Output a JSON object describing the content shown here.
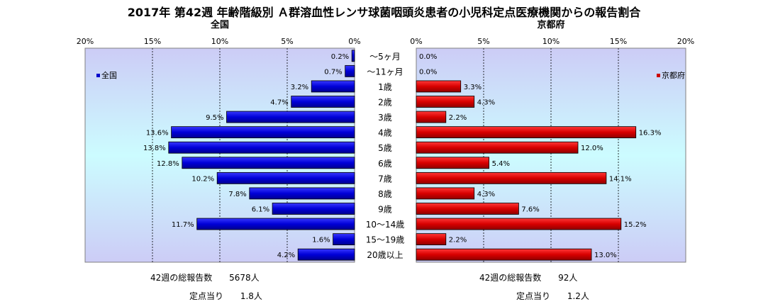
{
  "title": "2017年 第42週 年齢階級別 Ａ群溶血性レンサ球菌咽頭炎患者の小児科定点医療機関からの報告割合",
  "chart_data": {
    "type": "bar",
    "orientation": "horizontal",
    "categories": [
      "～5ヶ月",
      "～11ヶ月",
      "1歳",
      "2歳",
      "3歳",
      "4歳",
      "5歳",
      "6歳",
      "7歳",
      "8歳",
      "9歳",
      "10～14歳",
      "15～19歳",
      "20歳以上"
    ],
    "charts": [
      {
        "subtitle": "全国",
        "legend": "全国",
        "legend_position": "top-left",
        "color": "#0000cc",
        "xlim": [
          0,
          20
        ],
        "ticks": [
          "20%",
          "15%",
          "10%",
          "5%",
          "0%"
        ],
        "values": [
          0.2,
          0.7,
          3.2,
          4.7,
          9.5,
          13.6,
          13.8,
          12.8,
          10.2,
          7.8,
          6.1,
          11.7,
          1.6,
          4.2
        ],
        "labels": [
          "0.2%",
          "0.7%",
          "3.2%",
          "4.7%",
          "9.5%",
          "13.6%",
          "13.8%",
          "12.8%",
          "10.2%",
          "7.8%",
          "6.1%",
          "11.7%",
          "1.6%",
          "4.2%"
        ],
        "direction": "reversed"
      },
      {
        "subtitle": "京都府",
        "legend": "京都府",
        "legend_position": "top-right",
        "color": "#cc0000",
        "xlim": [
          0,
          20
        ],
        "ticks": [
          "0%",
          "5%",
          "10%",
          "15%",
          "20%"
        ],
        "values": [
          0.0,
          0.0,
          3.3,
          4.3,
          2.2,
          16.3,
          12.0,
          5.4,
          14.1,
          4.3,
          7.6,
          15.2,
          2.2,
          13.0
        ],
        "labels": [
          "0.0%",
          "0.0%",
          "3.3%",
          "4.3%",
          "2.2%",
          "16.3%",
          "12.0%",
          "5.4%",
          "14.1%",
          "4.3%",
          "7.6%",
          "15.2%",
          "2.2%",
          "13.0%"
        ],
        "direction": "normal"
      }
    ]
  },
  "stats": {
    "national": {
      "total_label": "42週の総報告数",
      "total_value": "5678人",
      "per_label": "定点当り",
      "per_value": "1.8人"
    },
    "kyoto": {
      "total_label": "42週の総報告数",
      "total_value": "92人",
      "per_label": "定点当り",
      "per_value": "1.2人"
    }
  }
}
